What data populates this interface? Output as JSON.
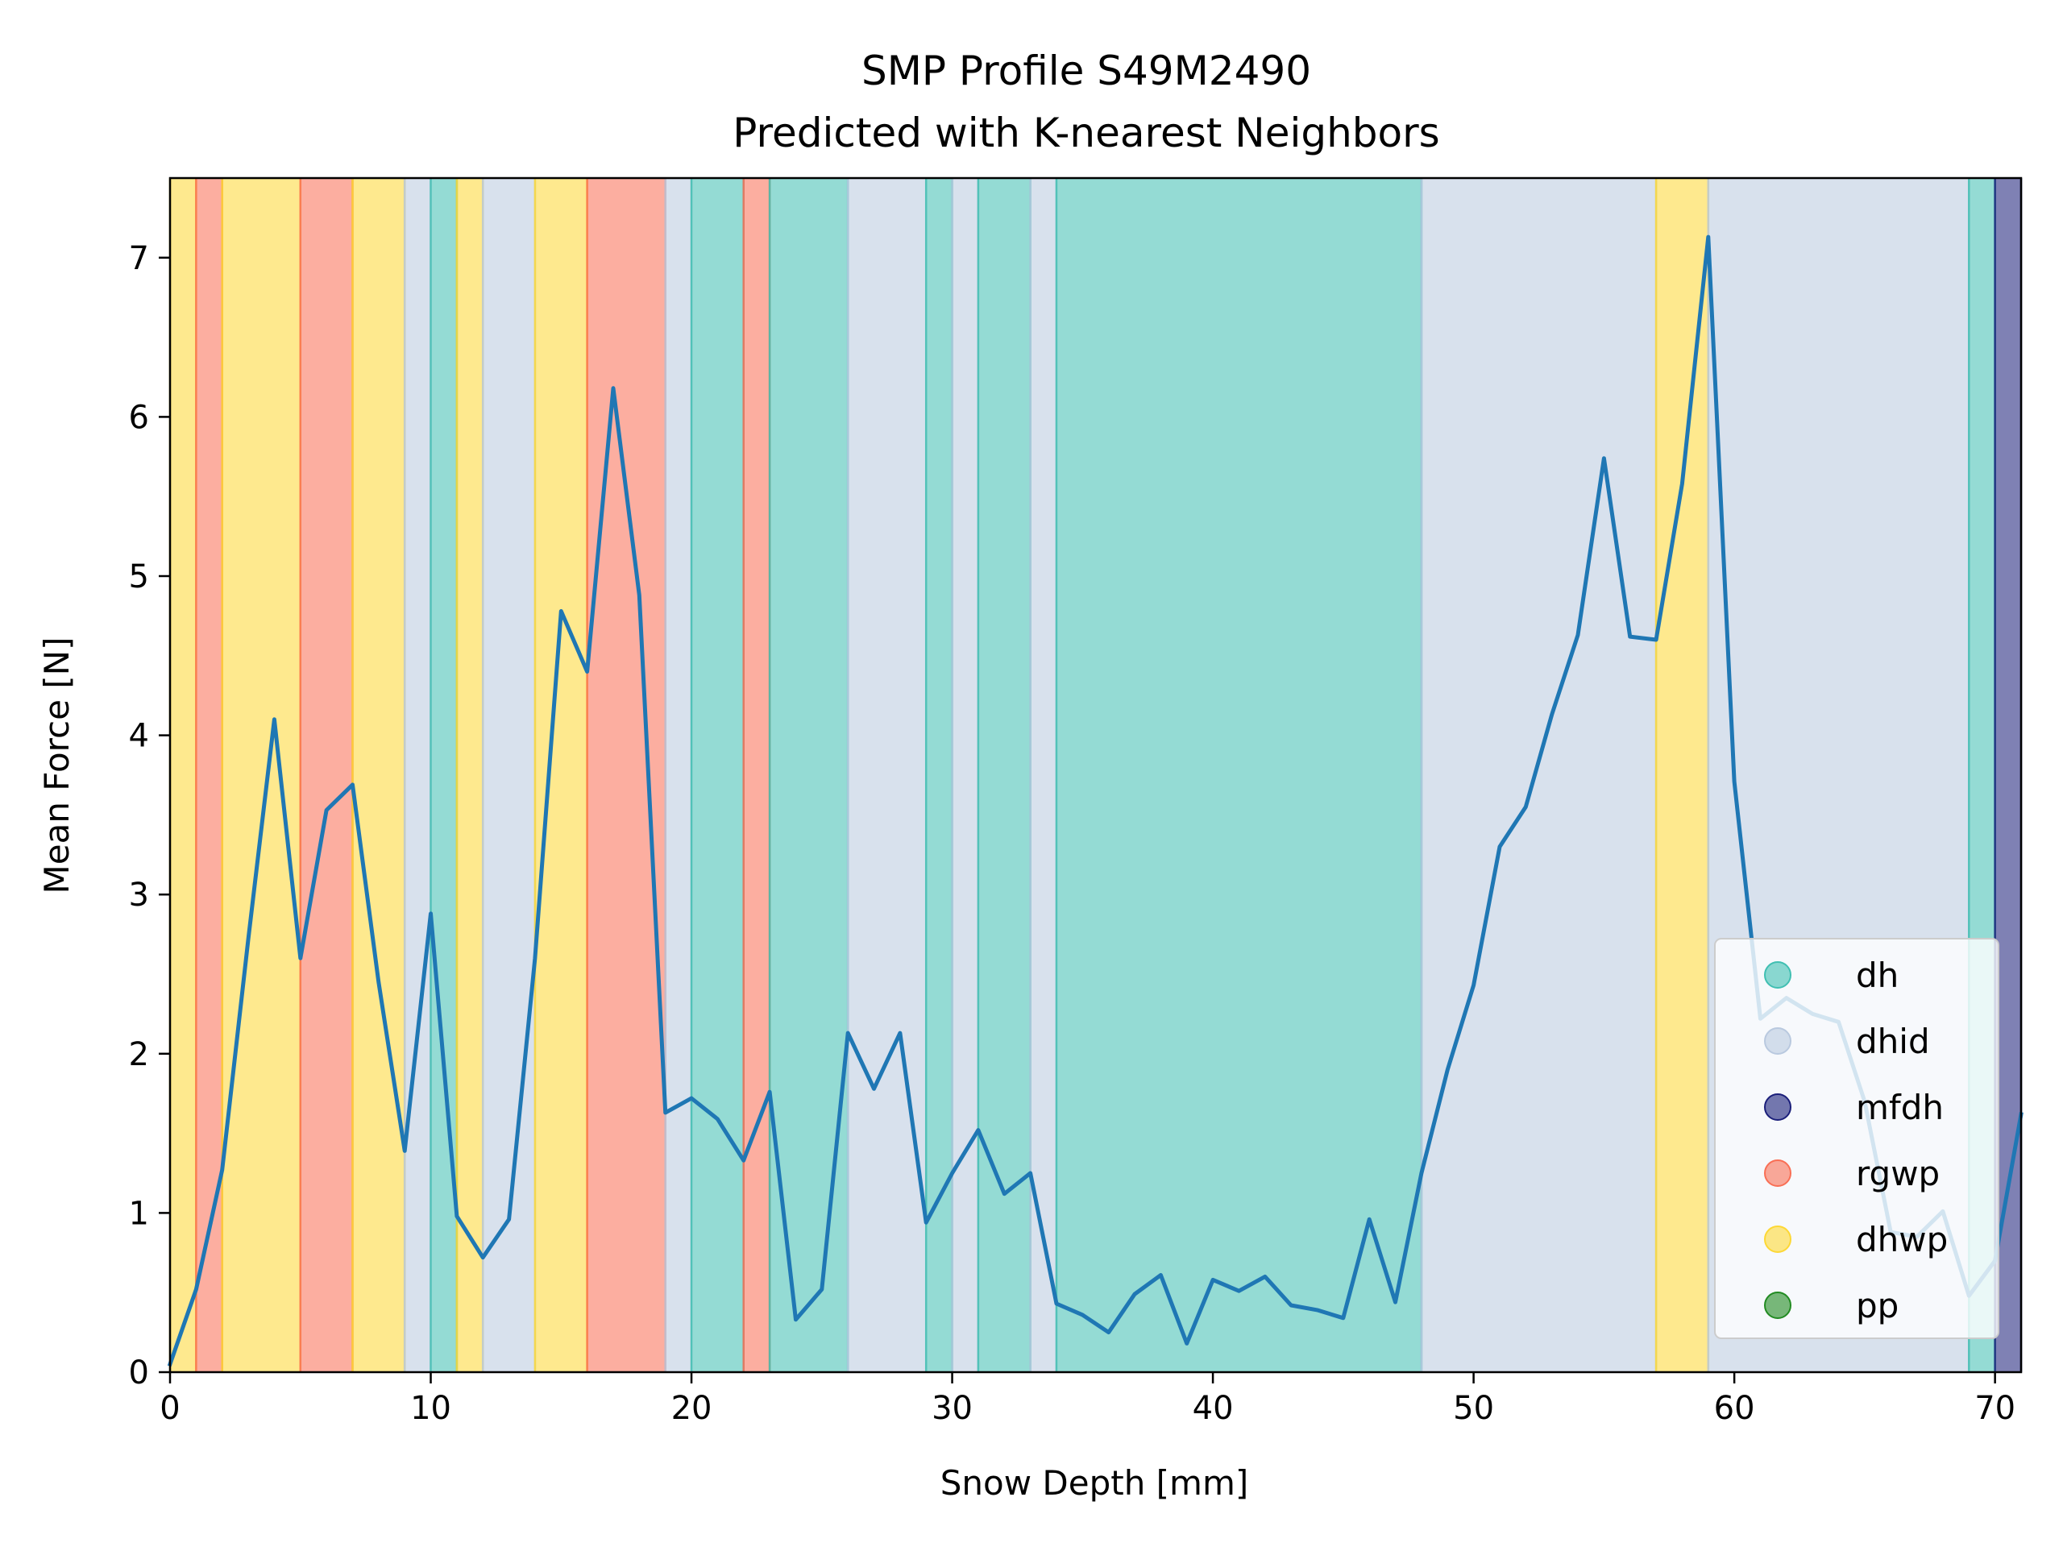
{
  "chart_data": {
    "type": "line",
    "title": "SMP Profile S49M2490",
    "subtitle": "Predicted with K-nearest Neighbors",
    "xlabel": "Snow Depth [mm]",
    "ylabel": "Mean Force [N]",
    "xlim": [
      0,
      71
    ],
    "ylim": [
      0,
      7.5
    ],
    "xticks": [
      0,
      10,
      20,
      30,
      40,
      50,
      60,
      70
    ],
    "yticks": [
      0,
      1,
      2,
      3,
      4,
      5,
      6,
      7
    ],
    "grid": false,
    "legend_position": "lower-right",
    "line_color": "#1f77b4",
    "classes": [
      {
        "name": "dh",
        "color": "#40bfb2"
      },
      {
        "name": "dhid",
        "color": "#b9c9df"
      },
      {
        "name": "mfdh",
        "color": "#1b1f7a"
      },
      {
        "name": "rgwp",
        "color": "#f96f55"
      },
      {
        "name": "dhwp",
        "color": "#fdd835"
      },
      {
        "name": "pp",
        "color": "#228b22"
      }
    ],
    "segments": [
      {
        "start": 0,
        "end": 1,
        "label": "dhwp"
      },
      {
        "start": 1,
        "end": 2,
        "label": "rgwp"
      },
      {
        "start": 2,
        "end": 5,
        "label": "dhwp"
      },
      {
        "start": 5,
        "end": 7,
        "label": "rgwp"
      },
      {
        "start": 7,
        "end": 9,
        "label": "dhwp"
      },
      {
        "start": 9,
        "end": 10,
        "label": "dhid"
      },
      {
        "start": 10,
        "end": 11,
        "label": "dh"
      },
      {
        "start": 11,
        "end": 12,
        "label": "dhwp"
      },
      {
        "start": 12,
        "end": 14,
        "label": "dhid"
      },
      {
        "start": 14,
        "end": 16,
        "label": "dhwp"
      },
      {
        "start": 16,
        "end": 19,
        "label": "rgwp"
      },
      {
        "start": 19,
        "end": 20,
        "label": "dhid"
      },
      {
        "start": 20,
        "end": 22,
        "label": "dh"
      },
      {
        "start": 22,
        "end": 23,
        "label": "rgwp"
      },
      {
        "start": 23,
        "end": 26,
        "label": "dh"
      },
      {
        "start": 26,
        "end": 29,
        "label": "dhid"
      },
      {
        "start": 29,
        "end": 30,
        "label": "dh"
      },
      {
        "start": 30,
        "end": 31,
        "label": "dhid"
      },
      {
        "start": 31,
        "end": 33,
        "label": "dh"
      },
      {
        "start": 33,
        "end": 34,
        "label": "dhid"
      },
      {
        "start": 34,
        "end": 48,
        "label": "dh"
      },
      {
        "start": 48,
        "end": 57,
        "label": "dhid"
      },
      {
        "start": 57,
        "end": 59,
        "label": "dhwp"
      },
      {
        "start": 59,
        "end": 69,
        "label": "dhid"
      },
      {
        "start": 69,
        "end": 70,
        "label": "dh"
      },
      {
        "start": 70,
        "end": 71,
        "label": "mfdh"
      }
    ],
    "series": [
      {
        "x": [
          0,
          1,
          2,
          3,
          4,
          5,
          6,
          7,
          8,
          9,
          10,
          11,
          12,
          13,
          14,
          15,
          16,
          17,
          18,
          19,
          20,
          21,
          22,
          23,
          24,
          25,
          26,
          27,
          28,
          29,
          30,
          31,
          32,
          33,
          34,
          35,
          36,
          37,
          38,
          39,
          40,
          41,
          42,
          43,
          44,
          45,
          46,
          47,
          48,
          49,
          50,
          51,
          52,
          53,
          54,
          55,
          56,
          57,
          58,
          59,
          60,
          61,
          62,
          63,
          64,
          65,
          66,
          67,
          68,
          69,
          70,
          71
        ],
        "y": [
          0.05,
          0.52,
          1.27,
          2.72,
          4.1,
          2.6,
          3.53,
          3.69,
          2.45,
          1.39,
          2.88,
          0.98,
          0.72,
          0.96,
          2.6,
          4.78,
          4.4,
          6.18,
          4.88,
          1.63,
          1.72,
          1.59,
          1.33,
          1.76,
          0.33,
          0.52,
          2.13,
          1.78,
          2.13,
          0.94,
          1.25,
          1.52,
          1.12,
          1.25,
          0.43,
          0.36,
          0.25,
          0.49,
          0.61,
          0.18,
          0.58,
          0.51,
          0.6,
          0.42,
          0.39,
          0.34,
          0.96,
          0.44,
          1.25,
          1.9,
          2.43,
          3.3,
          3.55,
          4.13,
          4.63,
          5.74,
          4.62,
          4.6,
          5.58,
          7.13,
          3.71,
          2.22,
          2.35,
          2.25,
          2.2,
          1.7,
          0.88,
          0.85,
          1.01,
          0.48,
          0.7,
          1.62
        ]
      }
    ]
  }
}
